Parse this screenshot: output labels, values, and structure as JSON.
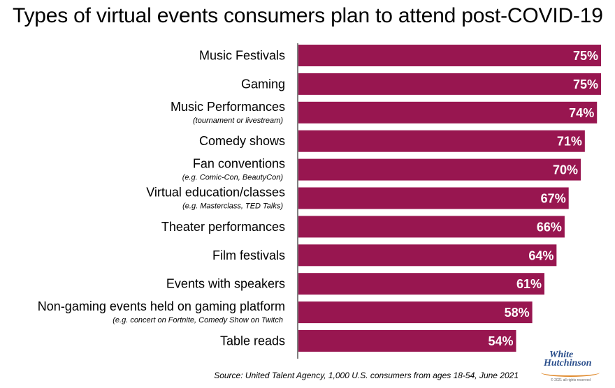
{
  "title": "Types of virtual events consumers plan to attend post-COVID-19",
  "source": "Source: United Talent Agency, 1,000 U.S. consumers from ages 18-54, June 2021",
  "logo": {
    "line1": "White",
    "line2": "Hutchinson",
    "tiny": "© 2021 all rights reserved"
  },
  "colors": {
    "bar": "#981650",
    "axis": "#000000",
    "value_text": "#ffffff"
  },
  "chart_data": {
    "type": "bar",
    "orientation": "horizontal",
    "categories": [
      "Music Festivals",
      "Gaming",
      "Music Performances",
      "Comedy shows",
      "Fan conventions",
      "Virtual education/classes",
      "Theater performances",
      "Film festivals",
      "Events with speakers",
      "Non-gaming events held on gaming platform",
      "Table reads"
    ],
    "subtitles": [
      "",
      "",
      "(tournament or livestream)",
      "",
      "(e.g. Comic-Con, BeautyCon)",
      "(e.g. Masterclass, TED Talks)",
      "",
      "",
      "",
      "(e.g. concert on Fortnite, Comedy Show on Twitch",
      ""
    ],
    "values": [
      75,
      75,
      74,
      71,
      70,
      67,
      66,
      64,
      61,
      58,
      54
    ],
    "value_labels": [
      "75%",
      "75%",
      "74%",
      "71%",
      "70%",
      "67%",
      "66%",
      "64%",
      "61%",
      "58%",
      "54%"
    ],
    "value_suffix": "%",
    "xlim": [
      0,
      75
    ],
    "grid": false,
    "legend": "none"
  }
}
